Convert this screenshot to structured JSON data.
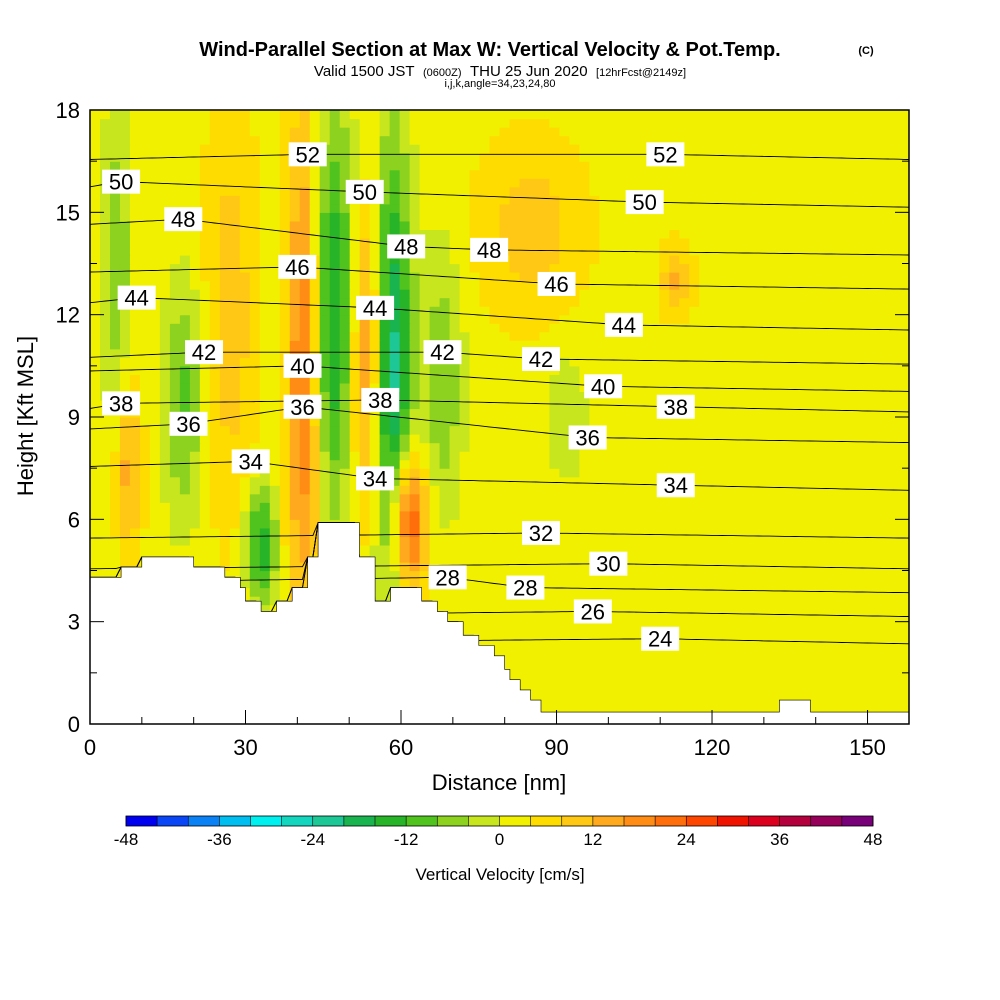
{
  "title": {
    "main": "Wind-Parallel Section at Max W: Vertical Velocity & Pot.Temp.",
    "main_tag": "(C)",
    "valid_prefix": "Valid 1500 JST",
    "valid_utc": "(0600Z)",
    "valid_date": "THU 25 Jun 2020",
    "forecast": "[12hrFcst@2149z]",
    "indices": "i,j,k,angle=34,23,24,80"
  },
  "chart_data": {
    "type": "heatmap",
    "xlabel": "Distance [nm]",
    "ylabel": "Height [Kft MSL]",
    "xlim": [
      0,
      158
    ],
    "ylim": [
      0,
      18
    ],
    "x_ticks": [
      0,
      30,
      60,
      90,
      120,
      150
    ],
    "y_ticks": [
      0,
      3,
      6,
      9,
      12,
      15,
      18
    ],
    "colorbar": {
      "label": "Vertical Velocity [cm/s]",
      "ticks": [
        -48,
        -36,
        -24,
        -12,
        0,
        12,
        24,
        36,
        48
      ],
      "levels": [
        -48,
        -44,
        -40,
        -36,
        -32,
        -28,
        -24,
        -20,
        -16,
        -12,
        -8,
        -4,
        0,
        4,
        8,
        12,
        16,
        20,
        24,
        28,
        32,
        36,
        40,
        44,
        48
      ],
      "colors": [
        "#0000f0",
        "#0a46f5",
        "#0a82f5",
        "#00bef0",
        "#00f0f0",
        "#14d6be",
        "#1ec896",
        "#19b450",
        "#28b428",
        "#50c31e",
        "#8cd21e",
        "#c8e61e",
        "#f0f000",
        "#ffdc00",
        "#ffc814",
        "#ffaa1e",
        "#ff8c14",
        "#ff6e0a",
        "#ff4600",
        "#f01400",
        "#dc001e",
        "#b4003c",
        "#96005a",
        "#780078"
      ]
    },
    "shaded_features": [
      {
        "feature": "downdraft",
        "x_range": [
          2,
          8
        ],
        "z_range": [
          9,
          18
        ],
        "w": -10
      },
      {
        "feature": "updraft",
        "x_range": [
          5,
          10
        ],
        "z_range": [
          5,
          10
        ],
        "w": 12
      },
      {
        "feature": "downdraft",
        "x_range": [
          14,
          22
        ],
        "z_range": [
          6,
          13
        ],
        "w": -12
      },
      {
        "feature": "updraft",
        "x_range": [
          22,
          32
        ],
        "z_range": [
          6,
          18
        ],
        "w": 8
      },
      {
        "feature": "downdraft",
        "x_range": [
          30,
          36
        ],
        "z_range": [
          3.5,
          7
        ],
        "w": -18
      },
      {
        "feature": "updraft",
        "x_range": [
          38,
          45
        ],
        "z_range": [
          4,
          18
        ],
        "w": 28
      },
      {
        "feature": "downdraft",
        "x_range": [
          40,
          52
        ],
        "z_range": [
          6,
          18
        ],
        "w": -22
      },
      {
        "feature": "updraft",
        "x_range": [
          50,
          57
        ],
        "z_range": [
          6,
          16
        ],
        "w": 22
      },
      {
        "feature": "downdraft",
        "x_range": [
          54,
          62
        ],
        "z_range": [
          4,
          17
        ],
        "w": -26
      },
      {
        "feature": "updraft",
        "x_range": [
          58,
          65
        ],
        "z_range": [
          4,
          8
        ],
        "w": 26
      },
      {
        "feature": "downdraft",
        "x_range": [
          64,
          72
        ],
        "z_range": [
          6,
          14
        ],
        "w": -10
      },
      {
        "feature": "downdraft",
        "x_range": [
          88,
          96
        ],
        "z_range": [
          7,
          11
        ],
        "w": -6
      },
      {
        "feature": "updraft",
        "x_range": [
          75,
          95
        ],
        "z_range": [
          12,
          17
        ],
        "w": 8
      },
      {
        "feature": "updraft",
        "x_range": [
          110,
          116
        ],
        "z_range": [
          12,
          14
        ],
        "w": 10
      }
    ],
    "theta_isentropes": {
      "unit": "C",
      "levels": [
        24,
        26,
        28,
        30,
        32,
        34,
        36,
        38,
        40,
        42,
        44,
        46,
        48,
        50,
        52
      ],
      "labels": [
        {
          "text": "52",
          "x": 42,
          "z": 16.7
        },
        {
          "text": "52",
          "x": 111,
          "z": 16.7
        },
        {
          "text": "50",
          "x": 6,
          "z": 15.9
        },
        {
          "text": "50",
          "x": 53,
          "z": 15.6
        },
        {
          "text": "50",
          "x": 107,
          "z": 15.3
        },
        {
          "text": "48",
          "x": 18,
          "z": 14.8
        },
        {
          "text": "48",
          "x": 61,
          "z": 14.0
        },
        {
          "text": "48",
          "x": 77,
          "z": 13.9
        },
        {
          "text": "46",
          "x": 40,
          "z": 13.4
        },
        {
          "text": "46",
          "x": 90,
          "z": 12.9
        },
        {
          "text": "44",
          "x": 9,
          "z": 12.5
        },
        {
          "text": "44",
          "x": 55,
          "z": 12.2
        },
        {
          "text": "44",
          "x": 103,
          "z": 11.7
        },
        {
          "text": "42",
          "x": 22,
          "z": 10.9
        },
        {
          "text": "42",
          "x": 68,
          "z": 10.9
        },
        {
          "text": "42",
          "x": 87,
          "z": 10.7
        },
        {
          "text": "40",
          "x": 41,
          "z": 10.5
        },
        {
          "text": "40",
          "x": 99,
          "z": 9.9
        },
        {
          "text": "38",
          "x": 6,
          "z": 9.4
        },
        {
          "text": "38",
          "x": 56,
          "z": 9.5
        },
        {
          "text": "38",
          "x": 113,
          "z": 9.3
        },
        {
          "text": "36",
          "x": 19,
          "z": 8.8
        },
        {
          "text": "36",
          "x": 41,
          "z": 9.3
        },
        {
          "text": "36",
          "x": 96,
          "z": 8.4
        },
        {
          "text": "34",
          "x": 31,
          "z": 7.7
        },
        {
          "text": "34",
          "x": 55,
          "z": 7.2
        },
        {
          "text": "34",
          "x": 113,
          "z": 7.0
        },
        {
          "text": "32",
          "x": 87,
          "z": 5.6
        },
        {
          "text": "30",
          "x": 100,
          "z": 4.7
        },
        {
          "text": "28",
          "x": 69,
          "z": 4.3
        },
        {
          "text": "28",
          "x": 84,
          "z": 4.0
        },
        {
          "text": "26",
          "x": 97,
          "z": 3.3
        },
        {
          "text": "24",
          "x": 110,
          "z": 2.5
        }
      ]
    },
    "terrain_kft": [
      [
        0,
        4.3
      ],
      [
        6,
        4.3
      ],
      [
        6,
        4.6
      ],
      [
        10,
        4.6
      ],
      [
        10,
        4.9
      ],
      [
        20,
        4.9
      ],
      [
        20,
        4.6
      ],
      [
        26,
        4.6
      ],
      [
        26,
        4.3
      ],
      [
        29,
        4.3
      ],
      [
        29,
        4.0
      ],
      [
        30,
        4.0
      ],
      [
        30,
        3.6
      ],
      [
        33,
        3.6
      ],
      [
        33,
        3.3
      ],
      [
        36,
        3.3
      ],
      [
        36,
        3.6
      ],
      [
        39,
        3.6
      ],
      [
        39,
        4.0
      ],
      [
        42,
        4.0
      ],
      [
        42,
        4.9
      ],
      [
        44,
        4.9
      ],
      [
        44,
        5.9
      ],
      [
        52,
        5.9
      ],
      [
        52,
        4.9
      ],
      [
        55,
        4.9
      ],
      [
        55,
        3.6
      ],
      [
        58,
        3.6
      ],
      [
        58,
        4.0
      ],
      [
        64,
        4.0
      ],
      [
        64,
        3.6
      ],
      [
        67,
        3.6
      ],
      [
        67,
        3.3
      ],
      [
        69,
        3.3
      ],
      [
        69,
        3.0
      ],
      [
        72,
        3.0
      ],
      [
        72,
        2.6
      ],
      [
        75,
        2.6
      ],
      [
        75,
        2.3
      ],
      [
        78,
        2.3
      ],
      [
        78,
        2.0
      ],
      [
        80,
        2.0
      ],
      [
        80,
        1.6
      ],
      [
        81,
        1.6
      ],
      [
        81,
        1.3
      ],
      [
        83,
        1.3
      ],
      [
        83,
        1.0
      ],
      [
        85,
        1.0
      ],
      [
        85,
        0.7
      ],
      [
        87,
        0.7
      ],
      [
        87,
        0.35
      ],
      [
        133,
        0.35
      ],
      [
        133,
        0.7
      ],
      [
        139,
        0.7
      ],
      [
        139,
        0.35
      ],
      [
        158,
        0.35
      ]
    ]
  }
}
